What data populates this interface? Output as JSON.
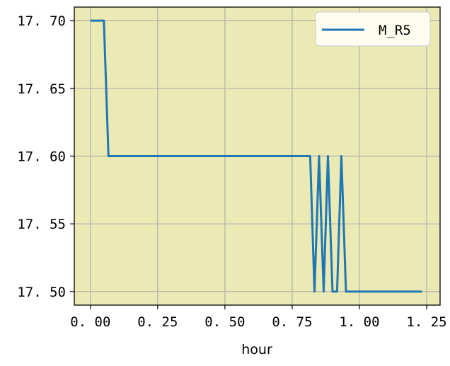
{
  "chart_data": {
    "type": "line",
    "title": "",
    "xlabel": "hour",
    "ylabel": "",
    "xlim": [
      -0.06,
      1.3
    ],
    "ylim": [
      17.49,
      17.71
    ],
    "x_ticks": [
      0.0,
      0.25,
      0.5,
      0.75,
      1.0,
      1.25
    ],
    "x_tick_labels": [
      "0. 00",
      "0. 25",
      "0. 50",
      "0. 75",
      "1. 00",
      "1. 25"
    ],
    "y_ticks": [
      17.5,
      17.55,
      17.6,
      17.65,
      17.7
    ],
    "y_tick_labels": [
      "17. 50",
      "17. 55",
      "17. 60",
      "17. 65",
      "17. 70"
    ],
    "grid": true,
    "legend": "top-right",
    "series": [
      {
        "name": "M_R5",
        "x": [
          0.0,
          0.05,
          0.067,
          0.817,
          0.833,
          0.85,
          0.867,
          0.883,
          0.9,
          0.917,
          0.933,
          0.95,
          1.233
        ],
        "y": [
          17.7,
          17.7,
          17.6,
          17.6,
          17.5,
          17.6,
          17.5,
          17.6,
          17.5,
          17.5,
          17.6,
          17.5,
          17.5
        ]
      }
    ],
    "colors": {
      "plot_background": "#ebe9b4",
      "line": "#1f77b4",
      "grid": "#b0b0b0",
      "legend_background": "#fefdf0"
    }
  }
}
